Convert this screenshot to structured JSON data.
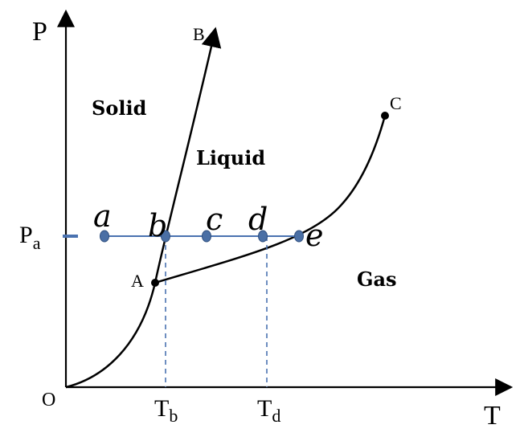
{
  "axes": {
    "y_label": "P",
    "x_label": "T",
    "origin_label": "O"
  },
  "curve_labels": {
    "triple_point": "A",
    "fusion_end": "B",
    "critical_point": "C"
  },
  "regions": {
    "solid": "Solid",
    "liquid": "Liquid",
    "gas": "Gas"
  },
  "pressure_line": {
    "label_main": "P",
    "label_sub": "a"
  },
  "states": [
    "a",
    "b",
    "c",
    "d",
    "e"
  ],
  "temperatures": {
    "tb_main": "T",
    "tb_sub": "b",
    "td_main": "T",
    "td_sub": "d"
  },
  "colors": {
    "line": "#000000",
    "isobar": "#4a72b0",
    "marker": "#4a6fa5",
    "marker_stroke": "#2f4f7f",
    "dashed": "#4a72b0"
  }
}
